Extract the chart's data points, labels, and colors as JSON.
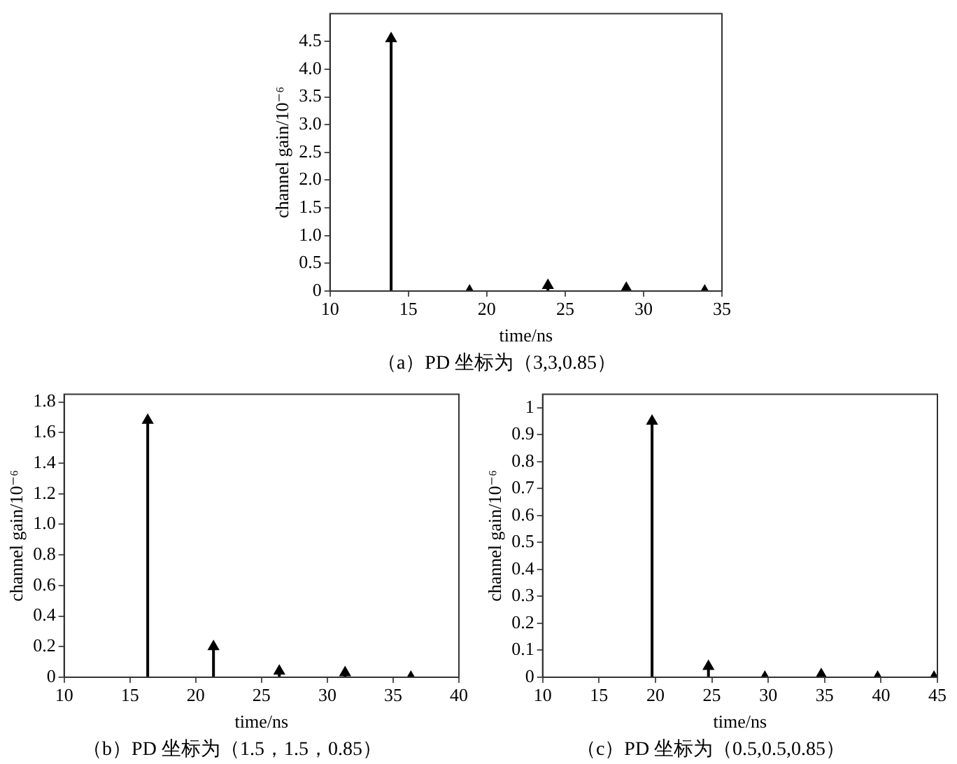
{
  "chart_data": [
    {
      "type": "lollipop",
      "title": "（a）PD 坐标为（3,3,0.85）",
      "xlabel": "time/ns",
      "ylabel": "channel gain/10⁻⁶",
      "marker": "triangle",
      "series": [
        {
          "color": "#000000",
          "x": [
            13.9,
            18.9,
            23.9,
            28.9,
            33.9
          ],
          "values": [
            4.55,
            0,
            0.1,
            0.05,
            0
          ]
        }
      ],
      "xlim": [
        10,
        35
      ],
      "xticks": [
        10,
        15,
        20,
        25,
        30,
        35
      ],
      "ylim": [
        0,
        5
      ],
      "yticks": [
        0,
        {
          "value": 0.5,
          "label": "0.5"
        },
        {
          "value": 1,
          "label": "1.0"
        },
        1.5,
        {
          "value": 2,
          "label": "2.0"
        },
        2.5,
        {
          "value": 3,
          "label": "3.0"
        },
        3.5,
        {
          "value": 4,
          "label": "4.0"
        },
        4.5
      ]
    },
    {
      "type": "lollipop",
      "title": "（b）PD 坐标为（1.5，1.5，0.85）",
      "xlabel": "time/ns",
      "ylabel": "channel gain/10⁻⁶",
      "marker": "triangle",
      "series": [
        {
          "color": "#000000",
          "x": [
            16.35,
            21.35,
            26.35,
            31.35,
            36.35
          ],
          "values": [
            1.68,
            0.2,
            0.04,
            0.03,
            0
          ]
        }
      ],
      "xlim": [
        10,
        40
      ],
      "xticks": [
        10,
        15,
        20,
        25,
        30,
        35,
        40
      ],
      "ylim": [
        0,
        1.85
      ],
      "yticks": [
        0,
        0.2,
        0.4,
        0.6,
        0.8,
        {
          "value": 1,
          "label": "1.0"
        },
        1.2,
        1.4,
        1.6,
        1.8
      ]
    },
    {
      "type": "lollipop",
      "title": "（c）PD 坐标为（0.5,0.5,0.85）",
      "xlabel": "time/ns",
      "ylabel": "channel gain/10⁻⁶",
      "marker": "triangle",
      "series": [
        {
          "color": "#000000",
          "x": [
            19.7,
            24.7,
            29.7,
            34.7,
            39.7,
            44.7
          ],
          "values": [
            0.95,
            0.04,
            0,
            0.01,
            0,
            0
          ]
        }
      ],
      "xlim": [
        10,
        45
      ],
      "xticks": [
        10,
        15,
        20,
        25,
        30,
        35,
        40,
        45
      ],
      "ylim": [
        0,
        1.05
      ],
      "yticks": [
        0,
        0.1,
        0.2,
        0.3,
        0.4,
        0.5,
        0.6,
        0.7,
        0.8,
        0.9,
        1
      ]
    }
  ]
}
